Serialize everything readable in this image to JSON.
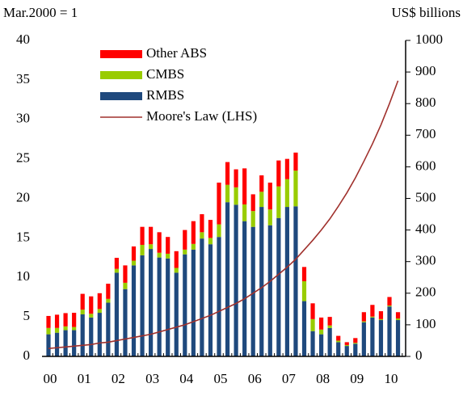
{
  "chart_data": {
    "type": "bar",
    "y_label": "Mar.2000 = 1",
    "y2_label": "US$ billions",
    "categories": [
      "00",
      null,
      null,
      null,
      "01",
      null,
      null,
      null,
      "02",
      null,
      null,
      null,
      "03",
      null,
      null,
      null,
      "04",
      null,
      null,
      null,
      "05",
      null,
      null,
      null,
      "06",
      null,
      null,
      null,
      "07",
      null,
      null,
      null,
      "08",
      null,
      null,
      null,
      "09",
      null,
      null,
      null,
      "10",
      null
    ],
    "ylim": [
      0,
      40
    ],
    "yticks": [
      0,
      5,
      10,
      15,
      20,
      25,
      30,
      35,
      40
    ],
    "y2lim": [
      0,
      1000
    ],
    "y2ticks": [
      0,
      100,
      200,
      300,
      400,
      500,
      600,
      700,
      800,
      900,
      1000
    ],
    "series": [
      {
        "name": "Other ABS",
        "type": "bar",
        "axis": "y2",
        "color": "#ff0000",
        "values": [
          38,
          42,
          42,
          45,
          50,
          55,
          50,
          48,
          35,
          55,
          45,
          57,
          55,
          65,
          53,
          53,
          62,
          72,
          57,
          57,
          132,
          72,
          57,
          114,
          53,
          52,
          85,
          82,
          64,
          57,
          45,
          50,
          38,
          27,
          15,
          9,
          15,
          29,
          37,
          25,
          27,
          20
        ]
      },
      {
        "name": "CMBS",
        "type": "bar",
        "axis": "y2",
        "color": "#99cc00",
        "values": [
          20,
          15,
          12,
          10,
          15,
          12,
          12,
          12,
          12,
          20,
          15,
          33,
          15,
          15,
          15,
          15,
          15,
          18,
          20,
          20,
          40,
          55,
          55,
          53,
          50,
          48,
          50,
          100,
          88,
          113,
          63,
          38,
          15,
          8,
          5,
          3,
          3,
          3,
          3,
          3,
          3,
          5
        ]
      },
      {
        "name": "RMBS",
        "type": "bar",
        "axis": "y2",
        "color": "#1f497d",
        "values": [
          70,
          75,
          83,
          83,
          133,
          123,
          138,
          170,
          265,
          213,
          288,
          320,
          340,
          313,
          310,
          265,
          323,
          338,
          373,
          355,
          378,
          488,
          480,
          428,
          410,
          473,
          415,
          438,
          473,
          475,
          175,
          80,
          70,
          90,
          45,
          33,
          40,
          108,
          123,
          115,
          158,
          115
        ]
      },
      {
        "name": "Moore's Law (LHS)",
        "type": "line",
        "color": "#a0312d",
        "values": [
          1.0,
          1.1,
          1.2,
          1.3,
          1.4,
          1.5,
          1.7,
          1.8,
          2.0,
          2.2,
          2.4,
          2.6,
          2.8,
          3.1,
          3.4,
          3.7,
          4.0,
          4.4,
          4.8,
          5.2,
          5.7,
          6.2,
          6.7,
          7.3,
          8.0,
          8.7,
          9.5,
          10.4,
          11.3,
          12.3,
          13.5,
          14.7,
          16.0,
          17.4,
          19.0,
          20.7,
          22.6,
          24.7,
          26.9,
          29.3,
          32.0,
          34.9
        ]
      }
    ]
  }
}
